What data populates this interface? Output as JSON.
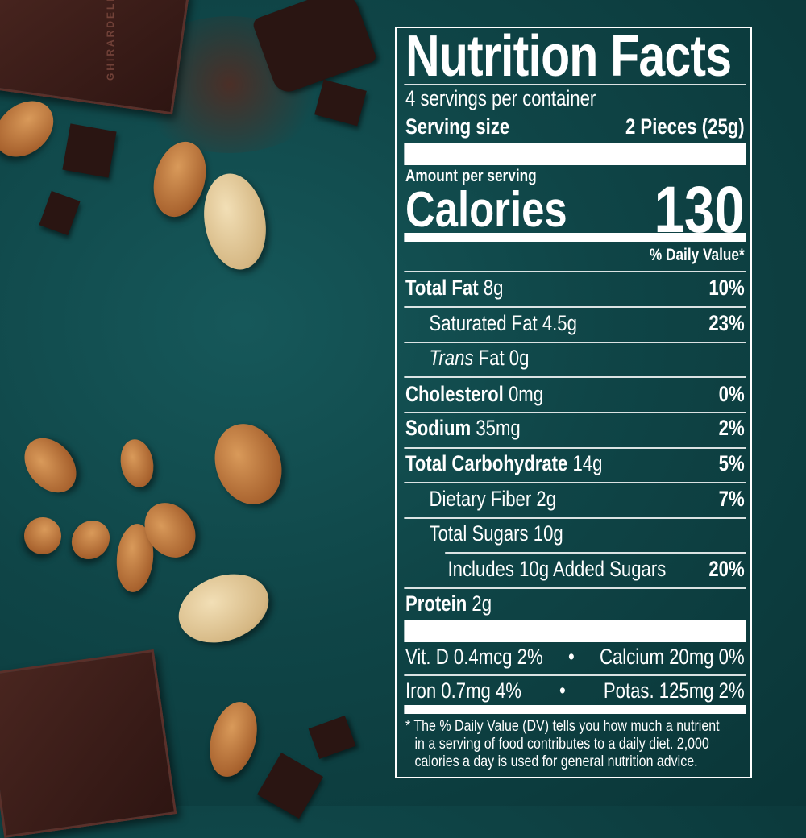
{
  "label": {
    "title": "Nutrition Facts",
    "servings": "4 servings per container",
    "serving_size_label": "Serving size",
    "serving_size_value": "2 Pieces (25g)",
    "amount_per_serving": "Amount per serving",
    "calories_label": "Calories",
    "calories_value": "130",
    "dv_header": "% Daily Value*",
    "rows": [
      {
        "name": "Total Fat",
        "amount": "8g",
        "dv": "10%"
      },
      {
        "name": "Saturated Fat",
        "amount": "4.5g",
        "dv": "23%"
      },
      {
        "name": "Trans",
        "name2": "Fat",
        "amount": "0g",
        "dv": ""
      },
      {
        "name": "Cholesterol",
        "amount": "0mg",
        "dv": "0%"
      },
      {
        "name": "Sodium",
        "amount": "35mg",
        "dv": "2%"
      },
      {
        "name": "Total Carbohydrate",
        "amount": "14g",
        "dv": "5%"
      },
      {
        "name": "Dietary Fiber",
        "amount": "2g",
        "dv": "7%"
      },
      {
        "name": "Total Sugars",
        "amount": "10g",
        "dv": ""
      },
      {
        "name": "Includes 10g Added Sugars",
        "amount": "",
        "dv": "20%"
      },
      {
        "name": "Protein",
        "amount": "2g",
        "dv": ""
      }
    ],
    "vitamins": {
      "vit_d": "Vit. D 0.4mcg 2%",
      "calcium": "Calcium 20mg 0%",
      "iron": "Iron 0.7mg 4%",
      "potassium": "Potas. 125mg 2%",
      "bullet": "•"
    },
    "footnote": [
      "* The % Daily Value (DV) tells you how much a nutrient",
      "in a serving of food contributes to a daily diet. 2,000",
      "calories a day is used for general nutrition advice."
    ]
  },
  "background": {
    "logo_text": "GHIRARDELLI",
    "colors": {
      "teal": "#0f4547",
      "chocolate": "#3a1d18",
      "almond": "#b06a34"
    }
  }
}
